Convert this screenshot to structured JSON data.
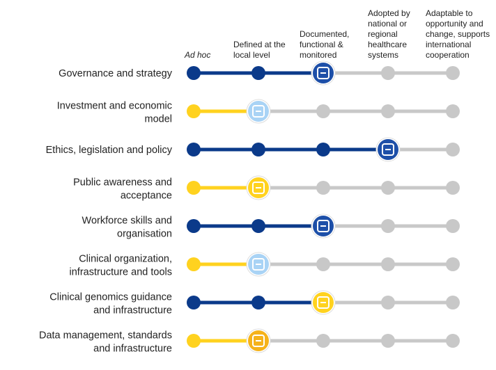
{
  "levels": [
    {
      "lines": [
        "Ad hoc"
      ],
      "italic": true
    },
    {
      "lines": [
        "Defined at the",
        "local level"
      ]
    },
    {
      "lines": [
        "Documented,",
        "functional &",
        "monitored"
      ]
    },
    {
      "lines": [
        "Adopted by",
        "national or",
        "regional",
        "healthcare",
        "systems"
      ]
    },
    {
      "lines": [
        "Adaptable to",
        "opportunity and",
        "change, supports",
        "international",
        "cooperation"
      ]
    }
  ],
  "rows": [
    {
      "lines": [
        "Governance and strategy"
      ],
      "level": 3,
      "color": "#0b3a8a",
      "icon_color": "#1d4fa8"
    },
    {
      "lines": [
        "Investment and economic",
        "model"
      ],
      "level": 2,
      "color": "#ffd21f",
      "icon_color": "#a9d3f5"
    },
    {
      "lines": [
        "Ethics, legislation and policy"
      ],
      "level": 4,
      "color": "#0b3a8a",
      "icon_color": "#1d4fa8"
    },
    {
      "lines": [
        "Public awareness and",
        "acceptance"
      ],
      "level": 2,
      "color": "#ffd21f",
      "icon_color": "#ffd21f"
    },
    {
      "lines": [
        "Workforce skills and",
        "organisation"
      ],
      "level": 3,
      "color": "#0b3a8a",
      "icon_color": "#1d4fa8"
    },
    {
      "lines": [
        "Clinical organization,",
        "infrastructure and tools"
      ],
      "level": 2,
      "color": "#ffd21f",
      "icon_color": "#a9d3f5"
    },
    {
      "lines": [
        "Clinical genomics guidance",
        "and infrastructure"
      ],
      "level": 3,
      "color": "#0b3a8a",
      "icon_color": "#ffd21f"
    },
    {
      "lines": [
        "Data management, standards",
        "and infrastructure"
      ],
      "level": 2,
      "color": "#ffd21f",
      "icon_color": "#f5b21a"
    }
  ],
  "inactive_color": "#c8c8c8"
}
